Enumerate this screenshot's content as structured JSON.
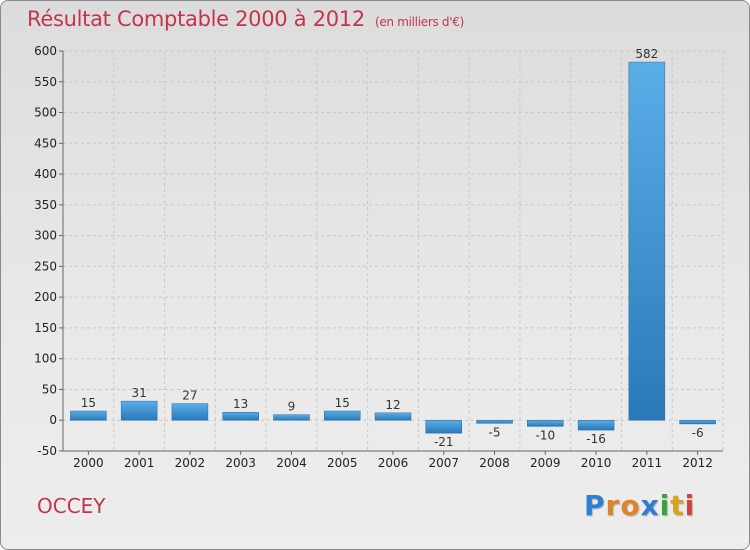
{
  "title": "Résultat Comptable 2000 à 2012",
  "unit_note": "(en milliers d'€)",
  "commune": "OCCEY",
  "logo": {
    "letters": [
      "P",
      "r",
      "o",
      "x",
      "i",
      "t",
      "i"
    ],
    "colors": [
      "#2f7fd0",
      "#e0842a",
      "#e0842a",
      "#2f7fd0",
      "#3aa23a",
      "#d9a31e",
      "#d2433a"
    ]
  },
  "colors": {
    "bar_top": "#5aaee8",
    "bar_bottom": "#2a78b8",
    "title": "#c4344a"
  },
  "chart_data": {
    "type": "bar",
    "categories": [
      "2000",
      "2001",
      "2002",
      "2003",
      "2004",
      "2005",
      "2006",
      "2007",
      "2008",
      "2009",
      "2010",
      "2011",
      "2012"
    ],
    "values": [
      15,
      31,
      27,
      13,
      9,
      15,
      12,
      -21,
      -5,
      -10,
      -16,
      582,
      -6
    ],
    "data_labels": [
      "15",
      "31",
      "27",
      "13",
      "9",
      "15",
      "12",
      "-21",
      "-5",
      "-10",
      "-16",
      "582",
      "-6"
    ],
    "y_ticks": [
      -50,
      0,
      50,
      100,
      150,
      200,
      250,
      300,
      350,
      400,
      450,
      500,
      550,
      600
    ],
    "ylim": [
      -50,
      600
    ],
    "grid": true
  }
}
